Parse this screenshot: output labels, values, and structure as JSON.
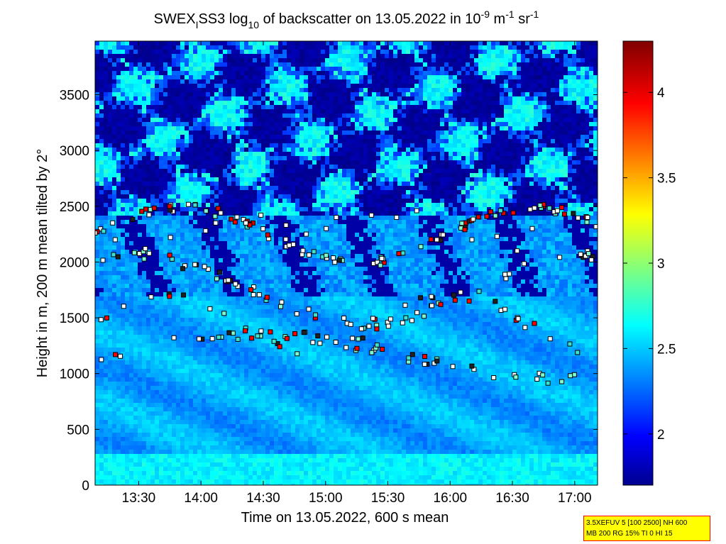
{
  "chart_data": {
    "type": "heatmap",
    "title_parts": {
      "main": "SWEX",
      "sub1": "I",
      "mid": "SS3 log",
      "sub2": "10",
      "after": " of backscatter on 13.05.2022 in 10",
      "sup1": "-9",
      "unit_m": " m",
      "sup2": "-1",
      "unit_sr": " sr",
      "sup3": "-1"
    },
    "xlabel": "Time on 13.05.2022, 600 s mean",
    "ylabel": "Height in m, 200 m mean tilted by 2°",
    "xlim": [
      "13:09",
      "17:11"
    ],
    "ylim": [
      0,
      3980
    ],
    "x_tick_labels": [
      "13:30",
      "14:00",
      "14:30",
      "15:00",
      "15:30",
      "16:00",
      "16:30",
      "17:00"
    ],
    "y_tick_labels": [
      "0",
      "500",
      "1000",
      "1500",
      "2000",
      "2500",
      "3000",
      "3500"
    ],
    "colorbar": {
      "clim": [
        1.7,
        4.3
      ],
      "colormap": "jet",
      "tick_labels": [
        "2",
        "2.5",
        "3",
        "3.5",
        "4"
      ]
    },
    "annotation_lines": [
      "3.5XEFUV 5 [100 2500] NH 600",
      "MB 200 RG 15% TI 0 HI 15"
    ]
  }
}
